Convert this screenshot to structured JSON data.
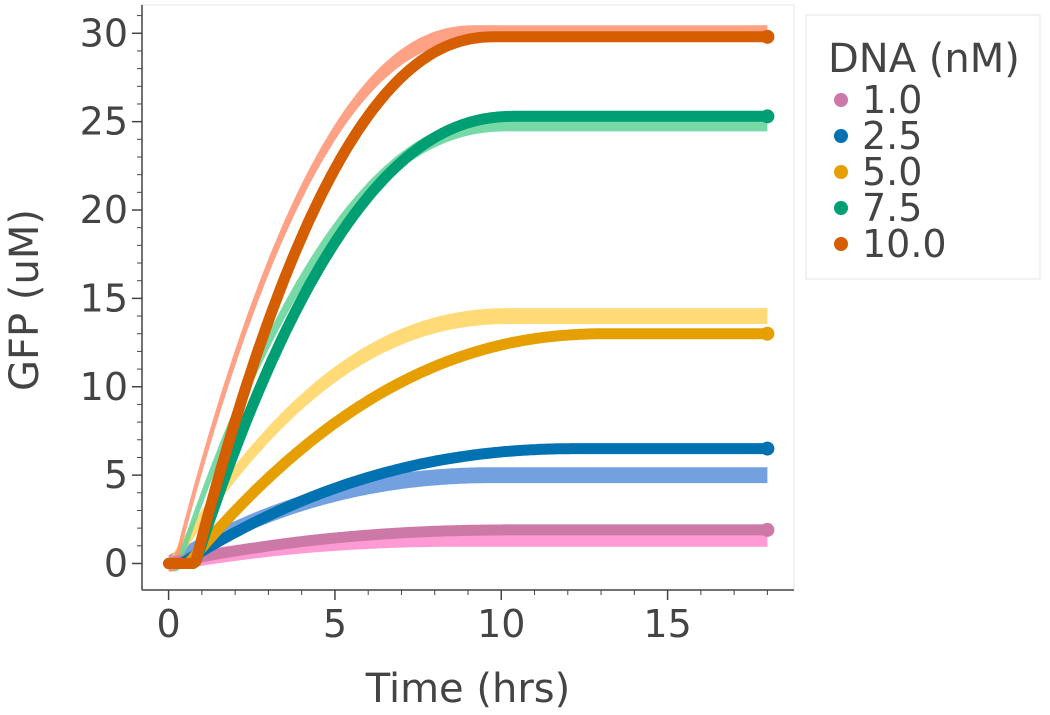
{
  "chart_data": {
    "type": "line",
    "xlabel": "Time (hrs)",
    "ylabel": "GFP (uM)",
    "xlim": [
      -0.8,
      18.8
    ],
    "ylim": [
      -1.5,
      31.6
    ],
    "x_ticks": [
      0,
      5,
      10,
      15
    ],
    "y_ticks": [
      0,
      5,
      10,
      15,
      20,
      25,
      30
    ],
    "grid": false,
    "legend": {
      "title": "DNA (nM)",
      "position": "right-outside-top"
    },
    "series": [
      {
        "name": "1.0",
        "color": "#cc79a7",
        "band_color": "#ff88cc",
        "data_plateau": 1.9,
        "data_tau": 3.5,
        "data_delay": 0.0,
        "model_plateau": 1.4,
        "model_tau": 3.0,
        "model_delay": 0.0,
        "model_band": 0.45
      },
      {
        "name": "2.5",
        "color": "#0072b2",
        "band_color": "#5b8fd9",
        "data_plateau": 6.5,
        "data_tau": 4.0,
        "data_delay": 0.4,
        "model_plateau": 5.0,
        "model_tau": 3.3,
        "model_delay": 0.0,
        "model_band": 0.45
      },
      {
        "name": "5.0",
        "color": "#e69f00",
        "band_color": "#ffd45e",
        "data_plateau": 13.0,
        "data_tau": 4.2,
        "data_delay": 0.6,
        "model_plateau": 14.0,
        "model_tau": 3.4,
        "model_delay": 0.1,
        "model_band": 0.45
      },
      {
        "name": "7.5",
        "color": "#009e73",
        "band_color": "#5fd497",
        "data_plateau": 25.3,
        "data_tau": 3.2,
        "data_delay": 0.8,
        "model_plateau": 24.9,
        "model_tau": 3.3,
        "model_delay": 0.3,
        "model_band": 0.45
      },
      {
        "name": "10.0",
        "color": "#d55e00",
        "band_color": "#ff9070",
        "data_plateau": 29.8,
        "data_tau": 3.0,
        "data_delay": 0.8,
        "model_plateau": 30.0,
        "model_tau": 3.0,
        "model_delay": 0.2,
        "model_band": 0.45
      }
    ],
    "x_end": 18.0
  }
}
